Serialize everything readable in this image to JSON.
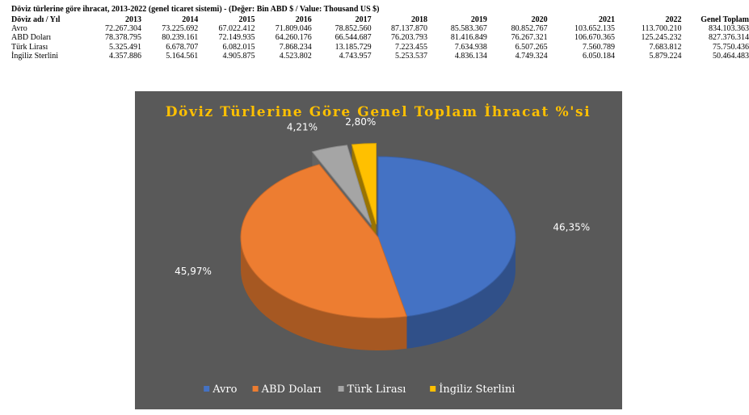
{
  "table": {
    "title": "Döviz türlerine göre ihracat, 2013-2022 (genel ticaret sistemi) - (Değer: Bin ABD $ / Value: Thousand US $)",
    "header": [
      "Döviz adı / Yıl",
      "2013",
      "2014",
      "2015",
      "2016",
      "2017",
      "2018",
      "2019",
      "2020",
      "2021",
      "2022",
      "Genel Toplam"
    ],
    "rows": [
      {
        "label": "Avro",
        "values": [
          "72.267.304",
          "73.225.692",
          "67.022.412",
          "71.809.046",
          "78.852.560",
          "87.137.870",
          "85.583.367",
          "80.852.767",
          "103.652.135",
          "113.700.210",
          "834.103.363"
        ]
      },
      {
        "label": "ABD Doları",
        "values": [
          "78.378.795",
          "80.239.161",
          "72.149.935",
          "64.260.176",
          "66.544.687",
          "76.203.793",
          "81.416.849",
          "76.267.321",
          "106.670.365",
          "125.245.232",
          "827.376.314"
        ]
      },
      {
        "label": "Türk Lirası",
        "values": [
          "5.325.491",
          "6.678.707",
          "6.082.015",
          "7.868.234",
          "13.185.729",
          "7.223.455",
          "7.634.938",
          "6.507.265",
          "7.560.789",
          "7.683.812",
          "75.750.436"
        ]
      },
      {
        "label": "İngiliz Sterlini",
        "values": [
          "4.357.886",
          "5.164.561",
          "4.905.875",
          "4.523.802",
          "4.743.957",
          "5.253.537",
          "4.836.134",
          "4.749.324",
          "6.050.184",
          "5.879.224",
          "50.464.483"
        ]
      }
    ]
  },
  "chart_data": {
    "type": "pie",
    "title": "Döviz Türlerine Göre Genel Toplam İhracat %'si",
    "labels": [
      "Avro",
      "ABD Doları",
      "Türk Lirası",
      "İngiliz Sterlini"
    ],
    "values": [
      46.35,
      45.97,
      4.21,
      2.8
    ],
    "data_labels": [
      "46,35%",
      "45,97%",
      "4,21%",
      "2,80%"
    ],
    "legend_position": "bottom",
    "colors": [
      "#4472C4",
      "#ED7D31",
      "#A5A5A5",
      "#FFC000"
    ],
    "background": "#595959",
    "title_color": "#FFC000",
    "exploded": [
      false,
      false,
      true,
      true
    ],
    "style": "3d"
  }
}
